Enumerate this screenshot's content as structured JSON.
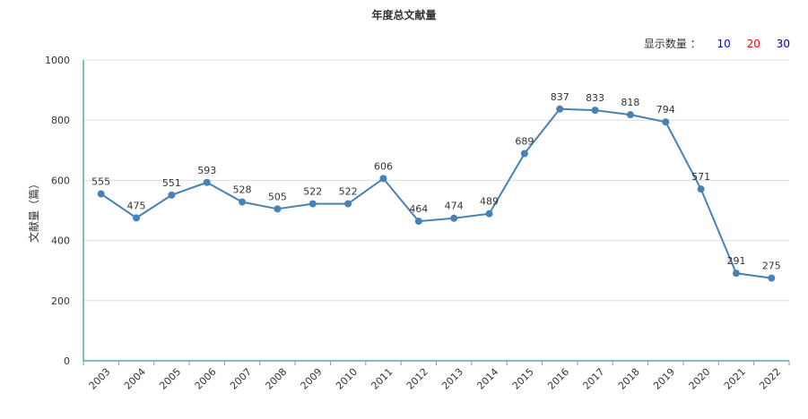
{
  "chart_data": {
    "type": "line",
    "title": "年度总文献量",
    "xlabel": "",
    "ylabel": "文献量（篇）",
    "categories": [
      "2003",
      "2004",
      "2005",
      "2006",
      "2007",
      "2008",
      "2009",
      "2010",
      "2011",
      "2012",
      "2013",
      "2014",
      "2015",
      "2016",
      "2017",
      "2018",
      "2019",
      "2020",
      "2021",
      "2022"
    ],
    "values": [
      555,
      475,
      551,
      593,
      528,
      505,
      522,
      522,
      606,
      464,
      474,
      489,
      689,
      837,
      833,
      818,
      794,
      571,
      291,
      275
    ],
    "ylim": [
      0,
      1000
    ],
    "yticks": [
      0,
      200,
      400,
      600,
      800,
      1000
    ],
    "grid": true,
    "legend": "none",
    "line_color": "#4682b4",
    "axis_color": "#008080",
    "grid_color": "#dddddd"
  },
  "count_switch": {
    "label": "显示数量 ：",
    "options": [
      "10",
      "20",
      "30"
    ]
  }
}
